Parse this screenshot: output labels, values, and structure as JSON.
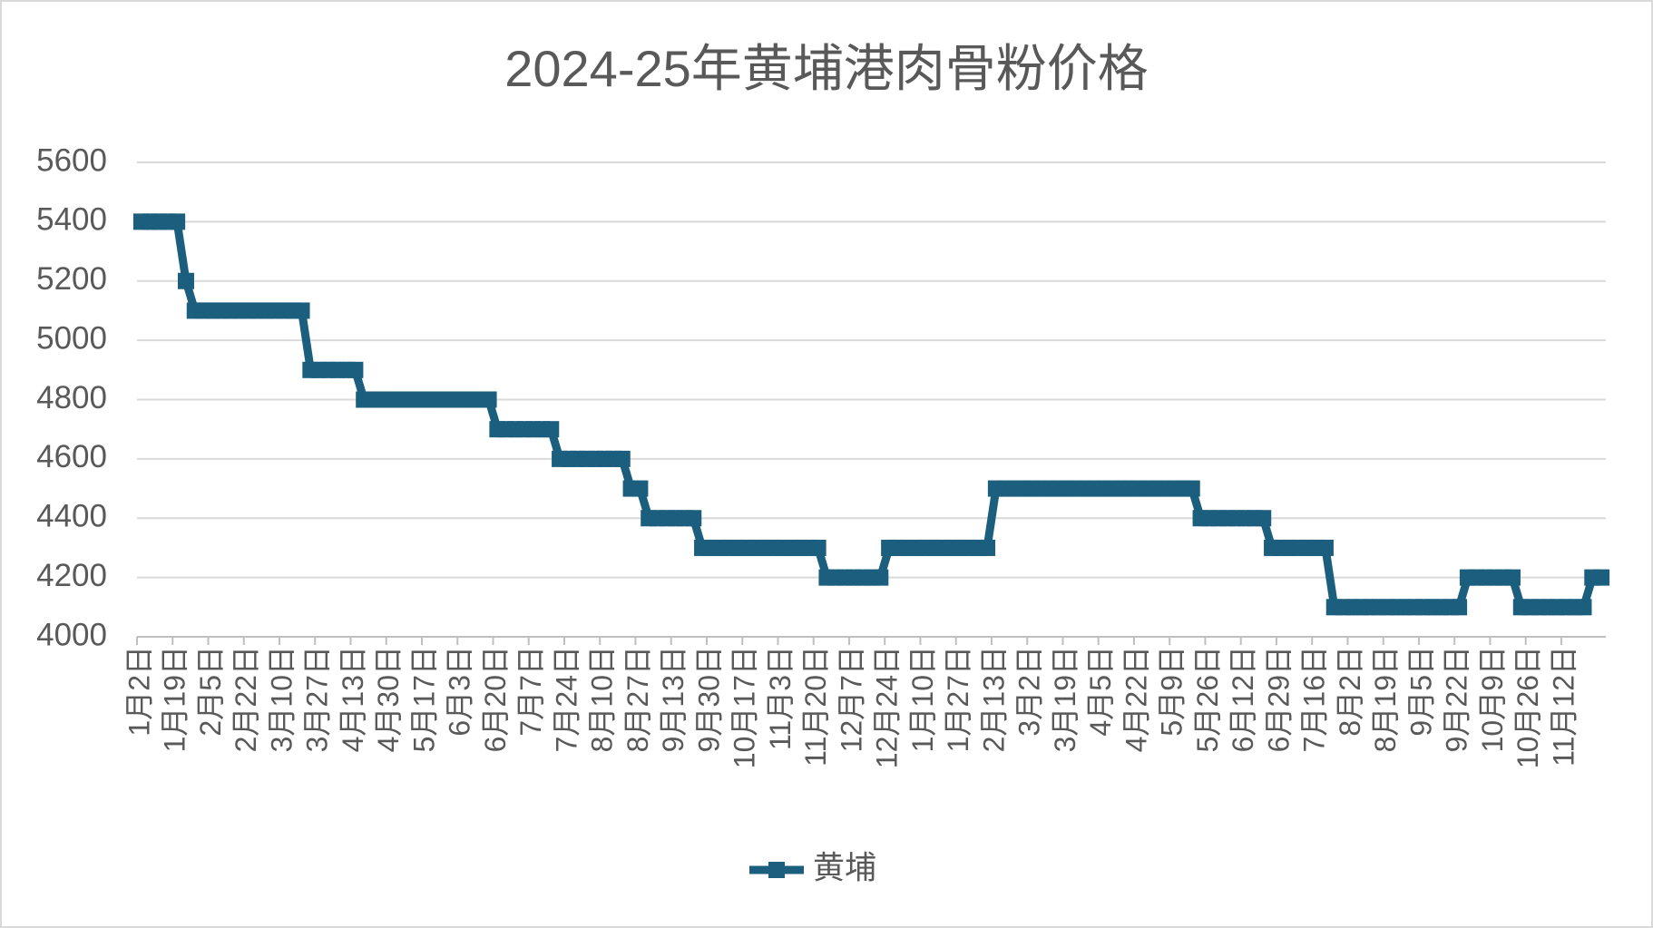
{
  "chart_data": {
    "type": "line",
    "title": "2024-25年黄埔港肉骨粉价格",
    "categories": [
      "1月2日",
      null,
      null,
      null,
      "1月19日",
      null,
      null,
      null,
      "2月5日",
      null,
      null,
      null,
      "2月22日",
      null,
      null,
      null,
      "3月10日",
      null,
      null,
      null,
      "3月27日",
      null,
      null,
      null,
      "4月13日",
      null,
      null,
      null,
      "4月30日",
      null,
      null,
      null,
      "5月17日",
      null,
      null,
      null,
      "6月3日",
      null,
      null,
      null,
      "6月20日",
      null,
      null,
      null,
      "7月7日",
      null,
      null,
      null,
      "7月24日",
      null,
      null,
      null,
      "8月10日",
      null,
      null,
      null,
      "8月27日",
      null,
      null,
      null,
      "9月13日",
      null,
      null,
      null,
      "9月30日",
      null,
      null,
      null,
      "10月17日",
      null,
      null,
      null,
      "11月3日",
      null,
      null,
      null,
      "11月20日",
      null,
      null,
      null,
      "12月7日",
      null,
      null,
      null,
      "12月24日",
      null,
      null,
      null,
      "1月10日",
      null,
      null,
      null,
      "1月27日",
      null,
      null,
      null,
      "2月13日",
      null,
      null,
      null,
      "3月2日",
      null,
      null,
      null,
      "3月19日",
      null,
      null,
      null,
      "4月5日",
      null,
      null,
      null,
      "4月22日",
      null,
      null,
      null,
      "5月9日",
      null,
      null,
      null,
      "5月26日",
      null,
      null,
      null,
      "6月12日",
      null,
      null,
      null,
      "6月29日",
      null,
      null,
      null,
      "7月16日",
      null,
      null,
      null,
      "8月2日",
      null,
      null,
      null,
      "8月19日",
      null,
      null,
      null,
      "9月5日",
      null,
      null,
      null,
      "9月22日",
      null,
      null,
      null,
      "10月9日",
      null,
      null,
      null,
      "10月26日",
      null,
      null,
      null,
      "11月12日",
      null,
      null,
      null,
      null
    ],
    "series": [
      {
        "name": "黄埔",
        "color": "#1b5e7e",
        "values": [
          5400,
          5400,
          5400,
          5400,
          5400,
          5200,
          5100,
          5100,
          5100,
          5100,
          5100,
          5100,
          5100,
          5100,
          5100,
          5100,
          5100,
          5100,
          5100,
          4900,
          4900,
          4900,
          4900,
          4900,
          4900,
          4800,
          4800,
          4800,
          4800,
          4800,
          4800,
          4800,
          4800,
          4800,
          4800,
          4800,
          4800,
          4800,
          4800,
          4800,
          4700,
          4700,
          4700,
          4700,
          4700,
          4700,
          4700,
          4600,
          4600,
          4600,
          4600,
          4600,
          4600,
          4600,
          4600,
          4500,
          4500,
          4400,
          4400,
          4400,
          4400,
          4400,
          4400,
          4300,
          4300,
          4300,
          4300,
          4300,
          4300,
          4300,
          4300,
          4300,
          4300,
          4300,
          4300,
          4300,
          4300,
          4200,
          4200,
          4200,
          4200,
          4200,
          4200,
          4200,
          4300,
          4300,
          4300,
          4300,
          4300,
          4300,
          4300,
          4300,
          4300,
          4300,
          4300,
          4300,
          4500,
          4500,
          4500,
          4500,
          4500,
          4500,
          4500,
          4500,
          4500,
          4500,
          4500,
          4500,
          4500,
          4500,
          4500,
          4500,
          4500,
          4500,
          4500,
          4500,
          4500,
          4500,
          4500,
          4400,
          4400,
          4400,
          4400,
          4400,
          4400,
          4400,
          4400,
          4300,
          4300,
          4300,
          4300,
          4300,
          4300,
          4300,
          4100,
          4100,
          4100,
          4100,
          4100,
          4100,
          4100,
          4100,
          4100,
          4100,
          4100,
          4100,
          4100,
          4100,
          4100,
          4200,
          4200,
          4200,
          4200,
          4200,
          4200,
          4100,
          4100,
          4100,
          4100,
          4100,
          4100,
          4100,
          4100,
          4200,
          4200
        ]
      }
    ],
    "ylim": [
      4000,
      5600
    ],
    "yticks": [
      4000,
      4200,
      4400,
      4600,
      4800,
      5000,
      5200,
      5400,
      5600
    ],
    "grid": true,
    "legend": "bottom"
  }
}
